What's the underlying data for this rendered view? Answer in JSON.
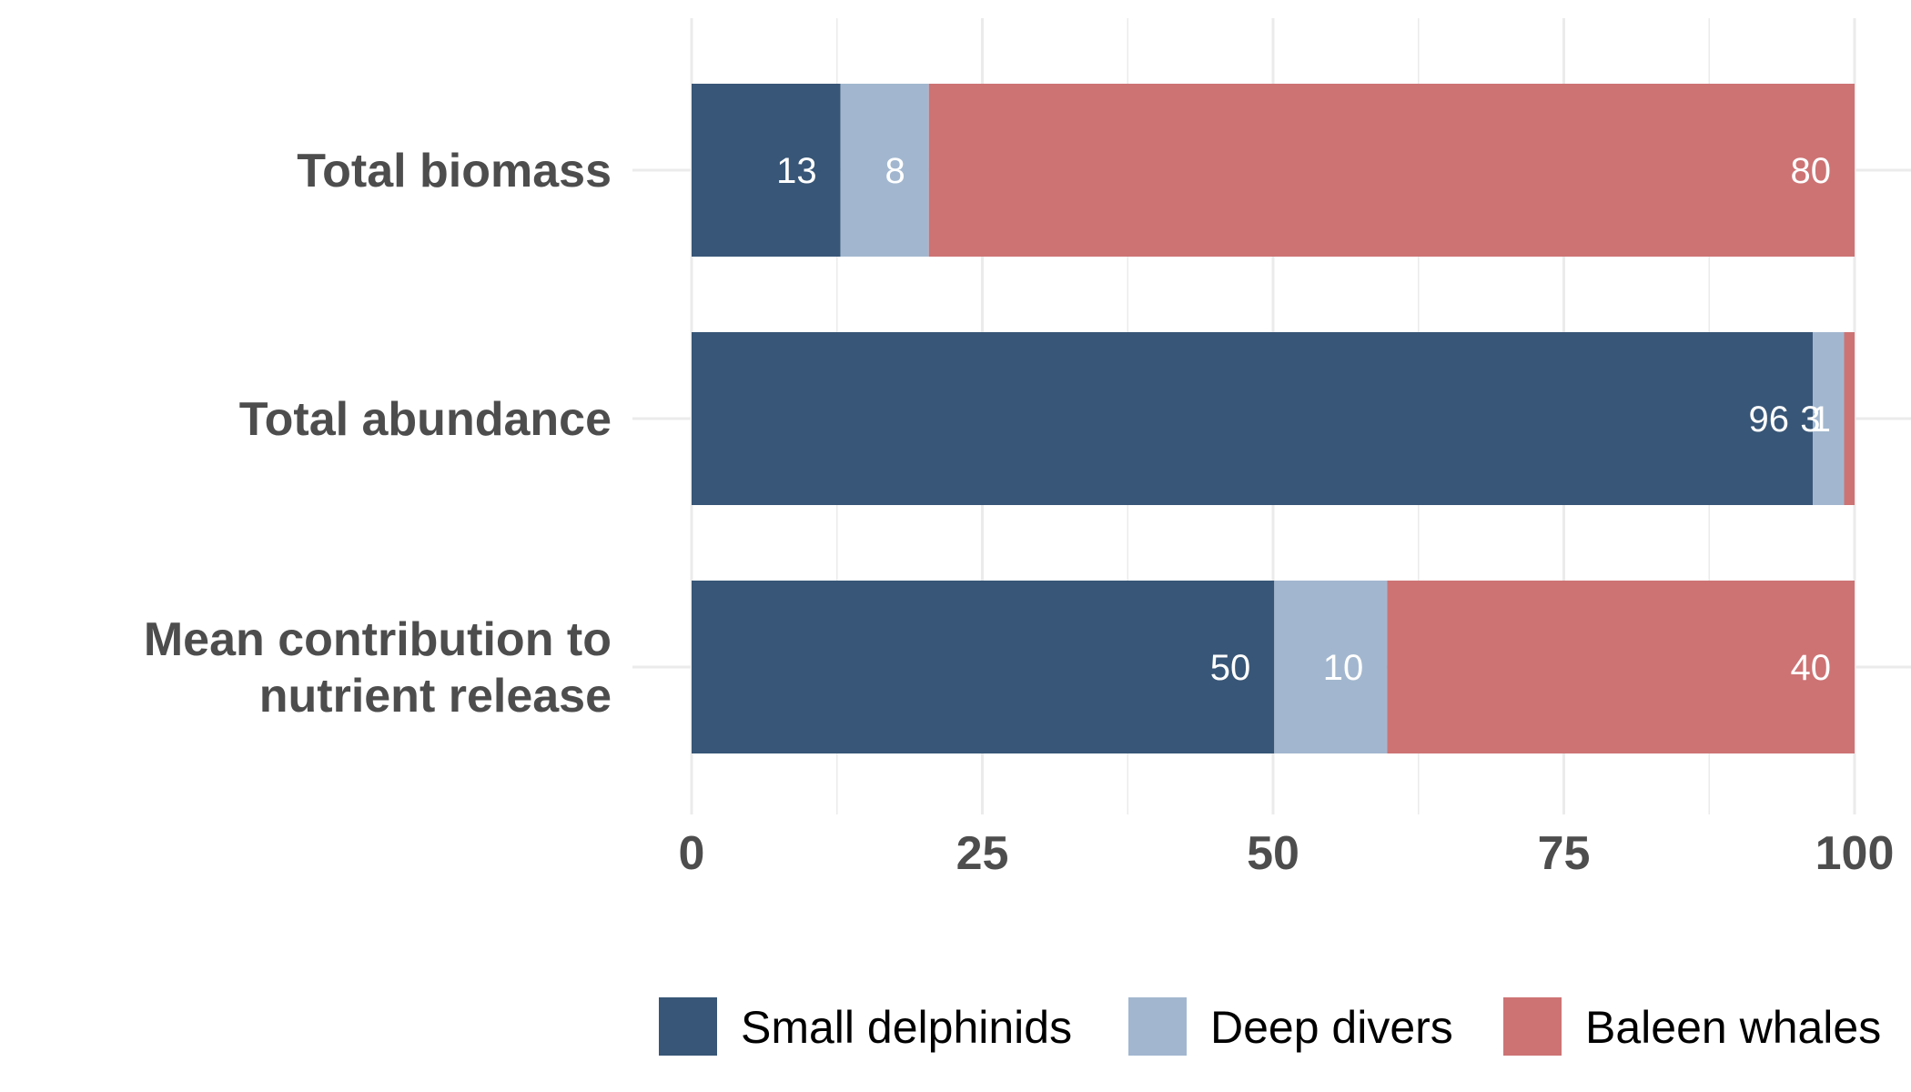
{
  "chart_data": {
    "type": "bar",
    "orientation": "horizontal",
    "stacked": true,
    "title": "",
    "xlabel": "",
    "ylabel": "",
    "xlim": [
      0,
      100
    ],
    "x_ticks": [
      "0",
      "25",
      "50",
      "75",
      "100"
    ],
    "grid": true,
    "legend_position": "bottom",
    "categories": [
      "Total biomass",
      "Total abundance",
      "Mean contribution to nutrient release"
    ],
    "category_lines": [
      [
        "Total biomass"
      ],
      [
        "Total abundance"
      ],
      [
        "Mean contribution to",
        "nutrient release"
      ]
    ],
    "series": [
      {
        "name": "Small delphinids",
        "color": "#385677",
        "values": [
          12.8,
          96.4,
          50.1
        ],
        "labels": [
          "13",
          "96",
          "50"
        ]
      },
      {
        "name": "Deep divers",
        "color": "#a2b7cf",
        "values": [
          7.6,
          2.7,
          9.7
        ],
        "labels": [
          "8",
          "3",
          "10"
        ]
      },
      {
        "name": "Baleen whales",
        "color": "#cd7374",
        "values": [
          79.6,
          0.9,
          40.2
        ],
        "labels": [
          "80",
          "1",
          "40"
        ]
      }
    ]
  }
}
